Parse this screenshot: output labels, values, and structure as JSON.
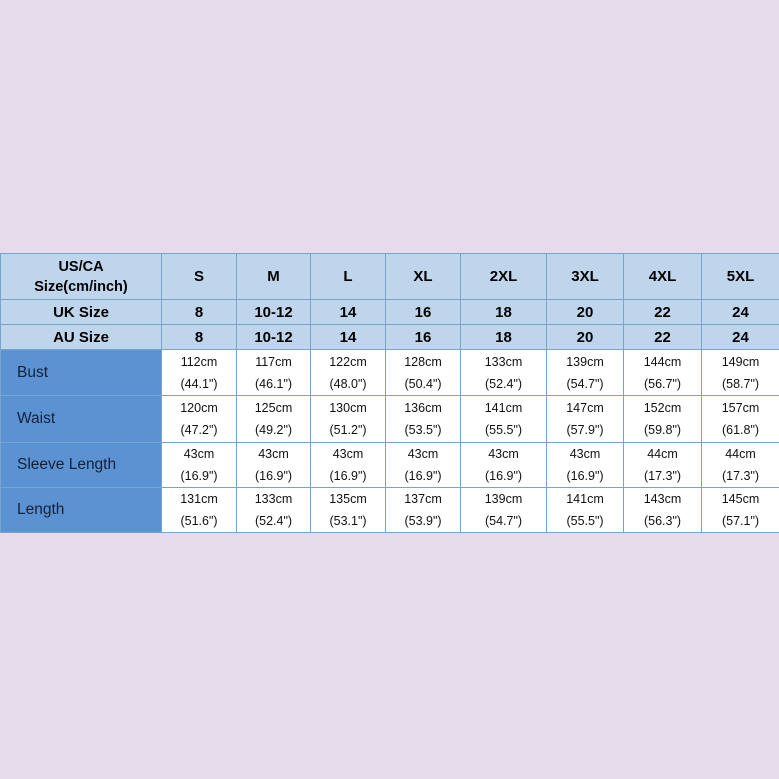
{
  "table": {
    "header_label_line1": "US/CA",
    "header_label_line2": "Size(cm/inch)",
    "sizes": [
      "S",
      "M",
      "L",
      "XL",
      "2XL",
      "3XL",
      "4XL",
      "5XL"
    ],
    "uk_label": "UK Size",
    "uk_sizes": [
      "8",
      "10-12",
      "14",
      "16",
      "18",
      "20",
      "22",
      "24"
    ],
    "au_label": "AU Size",
    "au_sizes": [
      "8",
      "10-12",
      "14",
      "16",
      "18",
      "20",
      "22",
      "24"
    ],
    "rows": [
      {
        "label": "Bust",
        "cm": [
          "112cm",
          "117cm",
          "122cm",
          "128cm",
          "133cm",
          "139cm",
          "144cm",
          "149cm"
        ],
        "inch": [
          "(44.1\")",
          "(46.1\")",
          "(48.0\")",
          "(50.4\")",
          "(52.4\")",
          "(54.7\")",
          "(56.7\")",
          "(58.7\")"
        ]
      },
      {
        "label": "Waist",
        "cm": [
          "120cm",
          "125cm",
          "130cm",
          "136cm",
          "141cm",
          "147cm",
          "152cm",
          "157cm"
        ],
        "inch": [
          "(47.2\")",
          "(49.2\")",
          "(51.2\")",
          "(53.5\")",
          "(55.5\")",
          "(57.9\")",
          "(59.8\")",
          "(61.8\")"
        ]
      },
      {
        "label": "Sleeve Length",
        "cm": [
          "43cm",
          "43cm",
          "43cm",
          "43cm",
          "43cm",
          "43cm",
          "44cm",
          "44cm"
        ],
        "inch": [
          "(16.9\")",
          "(16.9\")",
          "(16.9\")",
          "(16.9\")",
          "(16.9\")",
          "(16.9\")",
          "(17.3\")",
          "(17.3\")"
        ]
      },
      {
        "label": "Length",
        "cm": [
          "131cm",
          "133cm",
          "135cm",
          "137cm",
          "139cm",
          "141cm",
          "143cm",
          "145cm"
        ],
        "inch": [
          "(51.6\")",
          "(52.4\")",
          "(53.1\")",
          "(53.9\")",
          "(54.7\")",
          "(55.5\")",
          "(56.3\")",
          "(57.1\")"
        ]
      }
    ]
  },
  "colors": {
    "page_background": "#e6dceb",
    "header_fill": "#bed5ec",
    "row_label_fill": "#5b93d2",
    "border": "#7aa2cf"
  }
}
